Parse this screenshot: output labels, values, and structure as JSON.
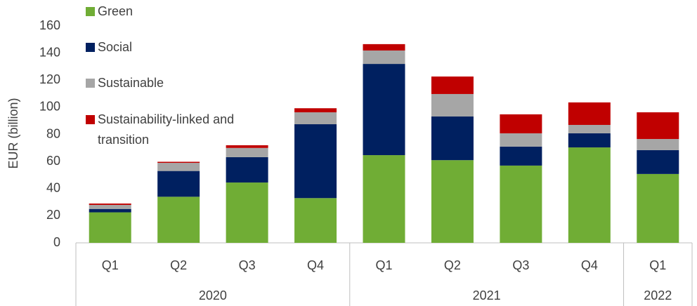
{
  "chart_data": {
    "type": "stacked_bar",
    "y_label": "EUR (billion)",
    "categories": [
      "Q1",
      "Q2",
      "Q3",
      "Q4",
      "Q1",
      "Q2",
      "Q3",
      "Q4",
      "Q1"
    ],
    "category_groups": [
      "2020",
      "2020",
      "2020",
      "2020",
      "2021",
      "2021",
      "2021",
      "2021",
      "2022"
    ],
    "series": [
      {
        "name": "Green",
        "color": "#70ad35",
        "values": [
          22.5,
          34,
          44.5,
          33,
          64.7,
          61,
          57,
          70.4,
          50.8
        ]
      },
      {
        "name": "Social",
        "color": "#002060",
        "values": [
          2.5,
          19,
          18.7,
          54.5,
          67.3,
          32.2,
          14,
          10.4,
          17.6
        ]
      },
      {
        "name": "Sustainable",
        "color": "#a6a6a6",
        "values": [
          3,
          6,
          6.8,
          8.8,
          9.9,
          16.6,
          9.8,
          6.2,
          8.2
        ]
      },
      {
        "name": "Sustainability-linked and transition",
        "color": "#c00000",
        "values": [
          1,
          0.8,
          2,
          3,
          4.7,
          12.9,
          14,
          16.6,
          19.7
        ]
      }
    ],
    "ylim": [
      0,
      160
    ],
    "yticks": [
      0,
      20,
      40,
      60,
      80,
      100,
      120,
      140,
      160
    ],
    "grid": false,
    "legend": "upper left"
  }
}
